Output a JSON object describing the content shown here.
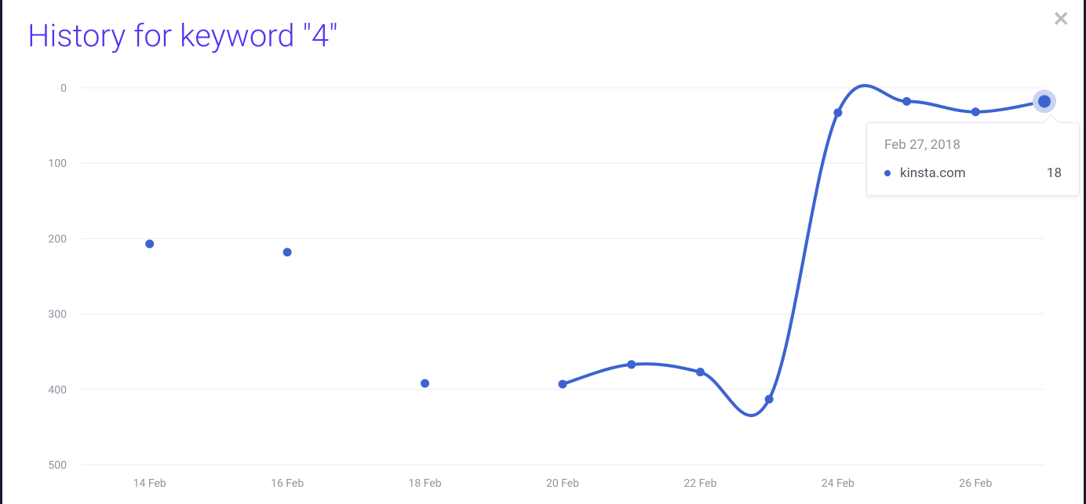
{
  "title": "History for keyword \"4\"",
  "close_glyph": "✕",
  "chart": {
    "type": "line",
    "background_color": "#ffffff",
    "grid_color": "#ebeef2",
    "axis_label_color": "#8a94a0",
    "axis_label_fontsize": 14,
    "title_color": "#5333ed",
    "title_fontsize": 40,
    "line_color": "#3c63d0",
    "marker_color": "#3c63d0",
    "line_width": 4,
    "marker_radius": 5.5,
    "highlight_marker_radius": 8,
    "highlight_halo_color": "#c9d4f0",
    "highlight_halo_radius": 15,
    "y_inverted": true,
    "ylim": [
      0,
      500
    ],
    "ytick_step": 100,
    "yticks": [
      0,
      100,
      200,
      300,
      400,
      500
    ],
    "x_domain": [
      13,
      27
    ],
    "xticks": [
      14,
      16,
      18,
      20,
      22,
      24,
      26
    ],
    "xtick_labels": [
      "14 Feb",
      "16 Feb",
      "18 Feb",
      "20 Feb",
      "22 Feb",
      "24 Feb",
      "26 Feb"
    ],
    "series": {
      "name": "kinsta.com",
      "points": [
        {
          "x": 14,
          "y": 207
        },
        {
          "x": 16,
          "y": 218
        },
        {
          "x": 18,
          "y": 392
        },
        {
          "x": 20,
          "y": 393
        },
        {
          "x": 21,
          "y": 367
        },
        {
          "x": 22,
          "y": 377
        },
        {
          "x": 23,
          "y": 413
        },
        {
          "x": 24,
          "y": 33
        },
        {
          "x": 25,
          "y": 18
        },
        {
          "x": 26,
          "y": 32
        },
        {
          "x": 27,
          "y": 18
        }
      ],
      "segments": [
        [
          3,
          4,
          5,
          6,
          7,
          8,
          9,
          10
        ]
      ]
    },
    "highlight_index": 10
  },
  "tooltip": {
    "date": "Feb 27, 2018",
    "series_name": "kinsta.com",
    "value": "18",
    "dot_color": "#3c63d0",
    "border_color": "#e3e7ec",
    "text_muted": "#8a94a0",
    "text_color": "#4a5560"
  }
}
